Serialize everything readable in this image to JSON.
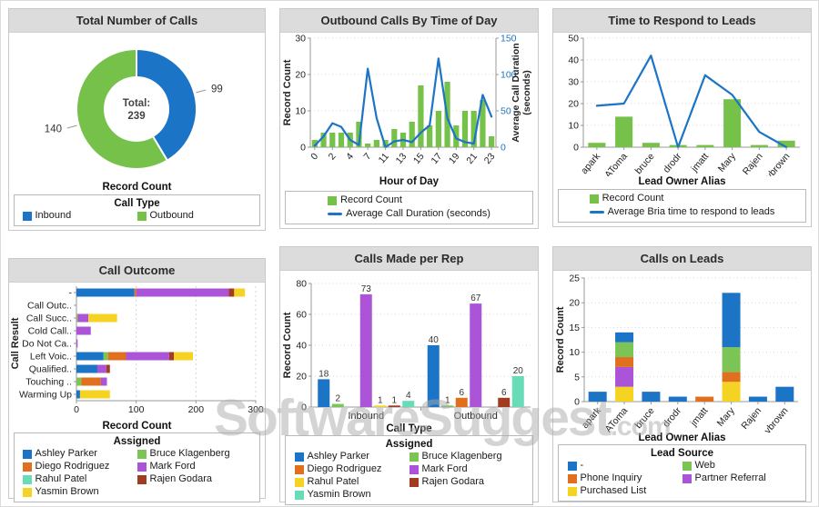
{
  "watermark": {
    "main": "SoftwareSuggest",
    "suffix": ".com"
  },
  "colors": {
    "blue": "#1b74c5",
    "green": "#76c14a",
    "lightgreen": "#7cc455",
    "orange": "#e0701e",
    "purple": "#ac54d8",
    "yellow": "#f4d322",
    "teal": "#67dcb6",
    "darkred": "#a23c20",
    "axis": "#999999",
    "grid": "#d4d4d4",
    "tick_text": "#222222"
  },
  "chart_data": [
    {
      "type": "pie",
      "title": "Total Number of Calls",
      "center_label": "Total:",
      "center_value": "239",
      "slices": [
        {
          "label": "Inbound",
          "value": 99,
          "color": "blue"
        },
        {
          "label": "Outbound",
          "value": 140,
          "color": "green"
        }
      ],
      "axis_label": "Record Count",
      "legend_title": "Call Type",
      "legend": [
        {
          "label": "Inbound",
          "color": "blue",
          "swatch": "square"
        },
        {
          "label": "Outbound",
          "color": "green",
          "swatch": "square"
        }
      ]
    },
    {
      "type": "bar-line",
      "title": "Outbound Calls By Time of Day",
      "xlabel": "Hour of Day",
      "ylabel": "Record Count",
      "ylabel_right": [
        "Average Call Duration",
        "(seconds)"
      ],
      "ylim": [
        0,
        30
      ],
      "yticks": [
        0,
        10,
        20,
        30
      ],
      "ylim_right": [
        0,
        150
      ],
      "yticks_right": [
        0,
        50,
        100,
        150
      ],
      "label_every": 2,
      "categories": [
        "0",
        "1",
        "2",
        "3",
        "4",
        "5",
        "7",
        "9",
        "11",
        "12",
        "13",
        "14",
        "15",
        "16",
        "17",
        "18",
        "19",
        "20",
        "21",
        "22",
        "23"
      ],
      "bars": [
        2,
        4,
        4,
        4,
        4,
        7,
        1,
        2,
        2,
        5,
        4,
        7,
        17,
        6,
        10,
        18,
        6,
        10,
        10,
        13,
        3
      ],
      "line": [
        2,
        15,
        33,
        28,
        10,
        3,
        108,
        40,
        0,
        8,
        10,
        7,
        20,
        30,
        122,
        40,
        12,
        7,
        5,
        72,
        42
      ],
      "legend": [
        {
          "label": "Record Count",
          "color": "green",
          "swatch": "square"
        },
        {
          "label": "Average Call Duration (seconds)",
          "color": "blue",
          "swatch": "line"
        }
      ]
    },
    {
      "type": "bar-line",
      "title": "Time to Respond to Leads",
      "xlabel": "Lead Owner Alias",
      "ylim": [
        0,
        50
      ],
      "yticks": [
        0,
        10,
        20,
        30,
        40,
        50
      ],
      "label_every": 1,
      "categories": [
        "apark",
        "AToma",
        "bruce",
        "drodr",
        "jmatt",
        "Mary",
        "Rajen",
        "ybrown"
      ],
      "bars": [
        2,
        14,
        2,
        1,
        1,
        22,
        1,
        3
      ],
      "line": [
        19,
        20,
        42,
        0,
        33,
        24,
        7,
        0
      ],
      "legend": [
        {
          "label": "Record Count",
          "color": "green",
          "swatch": "square"
        },
        {
          "label": "Average Bria time to respond to leads",
          "color": "blue",
          "swatch": "line"
        }
      ]
    },
    {
      "type": "hbar-stacked",
      "title": "Call Outcome",
      "xlabel": "Record Count",
      "ylabel": "Call Result",
      "xlim": [
        0,
        300
      ],
      "xticks": [
        0,
        100,
        200,
        300
      ],
      "categories": [
        "-",
        "Call Outc..",
        "Call Succ..",
        "Cold Call..",
        "Do Not Ca..",
        "Left Voic..",
        "Qualified..",
        "Touching ..",
        "Warming Up"
      ],
      "series": [
        {
          "name": "Ashley Parker",
          "color": "blue",
          "values": [
            97,
            0,
            0,
            0,
            0,
            45,
            35,
            0,
            6
          ]
        },
        {
          "name": "Bruce Klagenberg",
          "color": "lightgreen",
          "values": [
            0,
            0,
            2,
            0,
            0,
            8,
            0,
            8,
            0
          ]
        },
        {
          "name": "Diego Rodriguez",
          "color": "orange",
          "values": [
            3,
            0,
            0,
            0,
            0,
            30,
            0,
            33,
            0
          ]
        },
        {
          "name": "Mark Ford",
          "color": "purple",
          "values": [
            155,
            0,
            18,
            24,
            2,
            72,
            15,
            10,
            0
          ]
        },
        {
          "name": "Rahul Patel",
          "color": "teal",
          "values": [
            0,
            0,
            0,
            0,
            0,
            0,
            0,
            0,
            0
          ]
        },
        {
          "name": "Rajen Godara",
          "color": "darkred",
          "values": [
            9,
            0,
            0,
            0,
            0,
            8,
            6,
            0,
            0
          ]
        },
        {
          "name": "Yasmin Brown",
          "color": "yellow",
          "values": [
            18,
            0,
            48,
            0,
            0,
            32,
            0,
            0,
            50
          ]
        }
      ],
      "legend_title": "Assigned",
      "legend": [
        {
          "label": "Ashley Parker",
          "color": "blue",
          "swatch": "square"
        },
        {
          "label": "Bruce Klagenberg",
          "color": "lightgreen",
          "swatch": "square"
        },
        {
          "label": "Diego Rodriguez",
          "color": "orange",
          "swatch": "square"
        },
        {
          "label": "Mark Ford",
          "color": "purple",
          "swatch": "square"
        },
        {
          "label": "Rahul Patel",
          "color": "teal",
          "swatch": "square"
        },
        {
          "label": "Rajen Godara",
          "color": "darkred",
          "swatch": "square"
        },
        {
          "label": "Yasmin Brown",
          "color": "yellow",
          "swatch": "square"
        }
      ]
    },
    {
      "type": "bar-grouped",
      "title": "Calls Made per Rep",
      "xlabel": "Call Type",
      "ylabel": "Record Count",
      "ylim": [
        0,
        80
      ],
      "yticks": [
        0,
        20,
        40,
        60,
        80
      ],
      "categories": [
        "Inbound",
        "Outbound"
      ],
      "show_values": true,
      "series": [
        {
          "name": "Ashley Parker",
          "color": "blue",
          "values": [
            18,
            40
          ]
        },
        {
          "name": "Bruce Klagenberg",
          "color": "lightgreen",
          "values": [
            2,
            1
          ]
        },
        {
          "name": "Diego Rodriguez",
          "color": "orange",
          "values": [
            0,
            6
          ]
        },
        {
          "name": "Mark Ford",
          "color": "purple",
          "values": [
            73,
            67
          ]
        },
        {
          "name": "Rahul Patel",
          "color": "yellow",
          "values": [
            1,
            0
          ]
        },
        {
          "name": "Rajen Godara",
          "color": "darkred",
          "values": [
            1,
            6
          ]
        },
        {
          "name": "Yasmin Brown",
          "color": "teal",
          "values": [
            4,
            20
          ]
        }
      ],
      "legend_title": "Assigned",
      "legend": [
        {
          "label": "Ashley Parker",
          "color": "blue",
          "swatch": "square"
        },
        {
          "label": "Bruce Klagenberg",
          "color": "lightgreen",
          "swatch": "square"
        },
        {
          "label": "Diego Rodriguez",
          "color": "orange",
          "swatch": "square"
        },
        {
          "label": "Mark Ford",
          "color": "purple",
          "swatch": "square"
        },
        {
          "label": "Rahul Patel",
          "color": "yellow",
          "swatch": "square"
        },
        {
          "label": "Rajen Godara",
          "color": "darkred",
          "swatch": "square"
        },
        {
          "label": "Yasmin Brown",
          "color": "teal",
          "swatch": "square"
        }
      ]
    },
    {
      "type": "bar-stacked",
      "title": "Calls on Leads",
      "xlabel": "Lead Owner Alias",
      "ylabel": "Record Count",
      "ylim": [
        0,
        25
      ],
      "yticks": [
        0,
        5,
        10,
        15,
        20,
        25
      ],
      "categories": [
        "apark",
        "AToma",
        "bruce",
        "drodr",
        "jmatt",
        "Mary",
        "Rajen",
        "ybrown"
      ],
      "series": [
        {
          "name": "Purchased List",
          "color": "yellow",
          "values": [
            0,
            3,
            0,
            0,
            0,
            4,
            0,
            0
          ]
        },
        {
          "name": "Partner Referral",
          "color": "purple",
          "values": [
            0,
            4,
            0,
            0,
            0,
            0,
            0,
            0
          ]
        },
        {
          "name": "Phone Inquiry",
          "color": "orange",
          "values": [
            0,
            2,
            0,
            0,
            1,
            2,
            0,
            0
          ]
        },
        {
          "name": "Web",
          "color": "lightgreen",
          "values": [
            0,
            3,
            0,
            0,
            0,
            5,
            0,
            0
          ]
        },
        {
          "name": "-",
          "color": "blue",
          "values": [
            2,
            2,
            2,
            1,
            0,
            11,
            1,
            3
          ]
        }
      ],
      "legend_title": "Lead Source",
      "legend": [
        {
          "label": "-",
          "color": "blue",
          "swatch": "square"
        },
        {
          "label": "Web",
          "color": "lightgreen",
          "swatch": "square"
        },
        {
          "label": "Phone Inquiry",
          "color": "orange",
          "swatch": "square"
        },
        {
          "label": "Partner Referral",
          "color": "purple",
          "swatch": "square"
        },
        {
          "label": "Purchased List",
          "color": "yellow",
          "swatch": "square"
        }
      ]
    }
  ]
}
